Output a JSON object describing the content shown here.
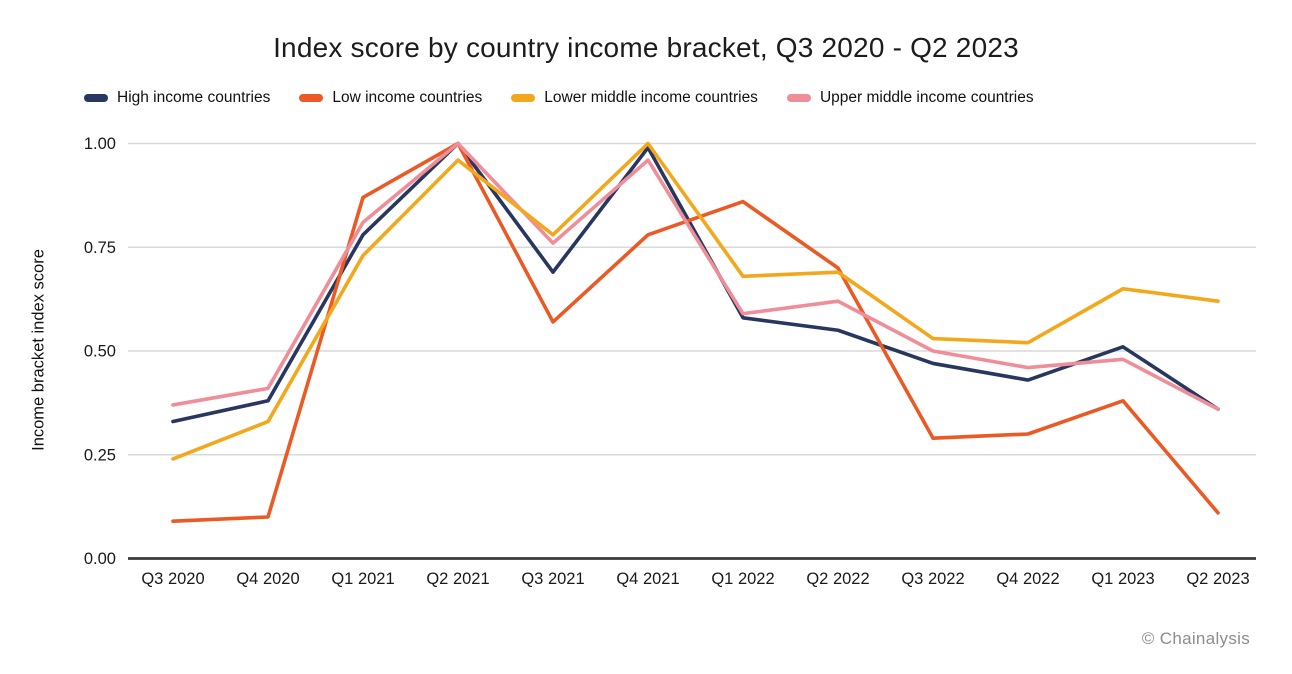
{
  "footer_credit": "© Chainalysis",
  "colors": {
    "gridline": "#d9d9d9",
    "axis_line": "#3a3a3a",
    "tick_text": "#1a1a1a",
    "title_text": "#1c1c1c",
    "credit_text": "#8d8d8d"
  },
  "chart_data": {
    "type": "line",
    "title": "Index score by country income bracket, Q3 2020 - Q2 2023",
    "xlabel": "",
    "ylabel": "Income bracket index score",
    "ylim": [
      0,
      1
    ],
    "yticks": [
      0,
      0.25,
      0.5,
      0.75,
      1
    ],
    "ytick_labels": [
      "0.00",
      "0.25",
      "0.50",
      "0.75",
      "1.00"
    ],
    "grid": true,
    "legend_position": "top-left",
    "categories": [
      "Q3 2020",
      "Q4 2020",
      "Q1 2021",
      "Q2 2021",
      "Q3 2021",
      "Q4 2021",
      "Q1 2022",
      "Q2 2022",
      "Q3 2022",
      "Q4 2022",
      "Q1 2023",
      "Q2 2023"
    ],
    "series": [
      {
        "name": "High income countries",
        "color": "#28375F",
        "values": [
          0.33,
          0.38,
          0.78,
          1.0,
          0.69,
          0.99,
          0.58,
          0.55,
          0.47,
          0.43,
          0.51,
          0.36
        ]
      },
      {
        "name": "Low income countries",
        "color": "#EB5A24",
        "values": [
          0.09,
          0.1,
          0.87,
          1.0,
          0.57,
          0.78,
          0.86,
          0.7,
          0.29,
          0.3,
          0.38,
          0.11
        ]
      },
      {
        "name": "Lower middle income countries",
        "color": "#F3A71B",
        "values": [
          0.24,
          0.33,
          0.73,
          0.96,
          0.78,
          1.0,
          0.68,
          0.69,
          0.53,
          0.52,
          0.65,
          0.62
        ]
      },
      {
        "name": "Upper middle income countries",
        "color": "#EF8E99",
        "values": [
          0.37,
          0.41,
          0.81,
          1.0,
          0.76,
          0.96,
          0.59,
          0.62,
          0.5,
          0.46,
          0.48,
          0.36
        ]
      }
    ],
    "draw_order": [
      0,
      1,
      3,
      2
    ]
  }
}
